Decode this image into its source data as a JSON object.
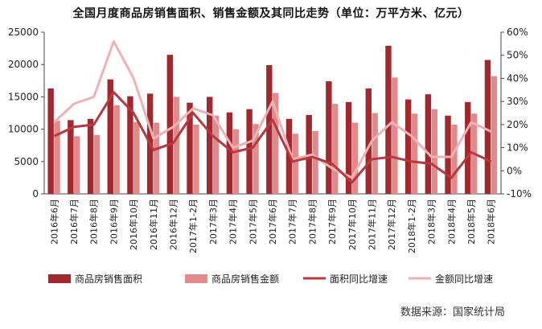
{
  "title": "全国月度商品房销售面积、销售金额及其同比走势（单位：万平方米、亿元）",
  "source": "数据来源：国家统计局",
  "colors": {
    "area_bar": "#a0282e",
    "amount_bar": "#e08a8c",
    "area_growth_line": "#b8383e",
    "amount_growth_line": "#eeb2b4",
    "axis": "#444444"
  },
  "chart_data": {
    "type": "bar",
    "categories": [
      "2016年6月",
      "2016年7月",
      "2016年8月",
      "2016年9月",
      "2016年10月",
      "2016年11月",
      "2016年12月",
      "2017年1-2月",
      "2017年3月",
      "2017年4月",
      "2017年5月",
      "2017年6月",
      "2017年7月",
      "2017年8月",
      "2017年9月",
      "2017年10月",
      "2017年11月",
      "2017年12月",
      "2018年1-2月",
      "2018年3月",
      "2018年4月",
      "2018年5月",
      "2018年6月"
    ],
    "left_axis": {
      "min": 0,
      "max": 25000,
      "ticks": [
        "0",
        "5000",
        "10000",
        "15000",
        "20000",
        "25000"
      ]
    },
    "right_axis": {
      "min": -10,
      "max": 60,
      "ticks": [
        "-10%",
        "0%",
        "10%",
        "20%",
        "30%",
        "40%",
        "50%",
        "60%"
      ]
    },
    "series": [
      {
        "name": "商品房销售面积",
        "kind": "bar",
        "axis": "left",
        "values": [
          16300,
          11400,
          11600,
          17700,
          15100,
          15500,
          21500,
          14100,
          15000,
          12600,
          13100,
          19900,
          11600,
          12200,
          17400,
          14200,
          16300,
          22900,
          14600,
          15400,
          12100,
          14200,
          20700
        ]
      },
      {
        "name": "商品房销售金额",
        "kind": "bar",
        "axis": "left",
        "values": [
          11300,
          8900,
          9100,
          13700,
          11100,
          11000,
          15000,
          10700,
          12100,
          10000,
          10800,
          15600,
          9300,
          9700,
          13900,
          11000,
          12500,
          18000,
          12400,
          13100,
          10700,
          12400,
          18200
        ]
      },
      {
        "name": "面积同比增速",
        "kind": "line",
        "axis": "right",
        "values": [
          15,
          19,
          20,
          34,
          25,
          9,
          12,
          25,
          15,
          8,
          10,
          22,
          4,
          6,
          3,
          -5,
          5,
          6,
          4,
          3,
          -3,
          8,
          4
        ]
      },
      {
        "name": "金额同比增速",
        "kind": "line",
        "axis": "right",
        "values": [
          21,
          29,
          32,
          56,
          40,
          14,
          19,
          27,
          24,
          10,
          13,
          30,
          5,
          7,
          1,
          -3,
          13,
          21,
          15,
          6,
          6,
          21,
          17
        ]
      }
    ],
    "legend": [
      "商品房销售面积",
      "商品房销售金额",
      "面积同比增速",
      "金额同比增速"
    ],
    "legend_position": "bottom",
    "grid": false
  }
}
